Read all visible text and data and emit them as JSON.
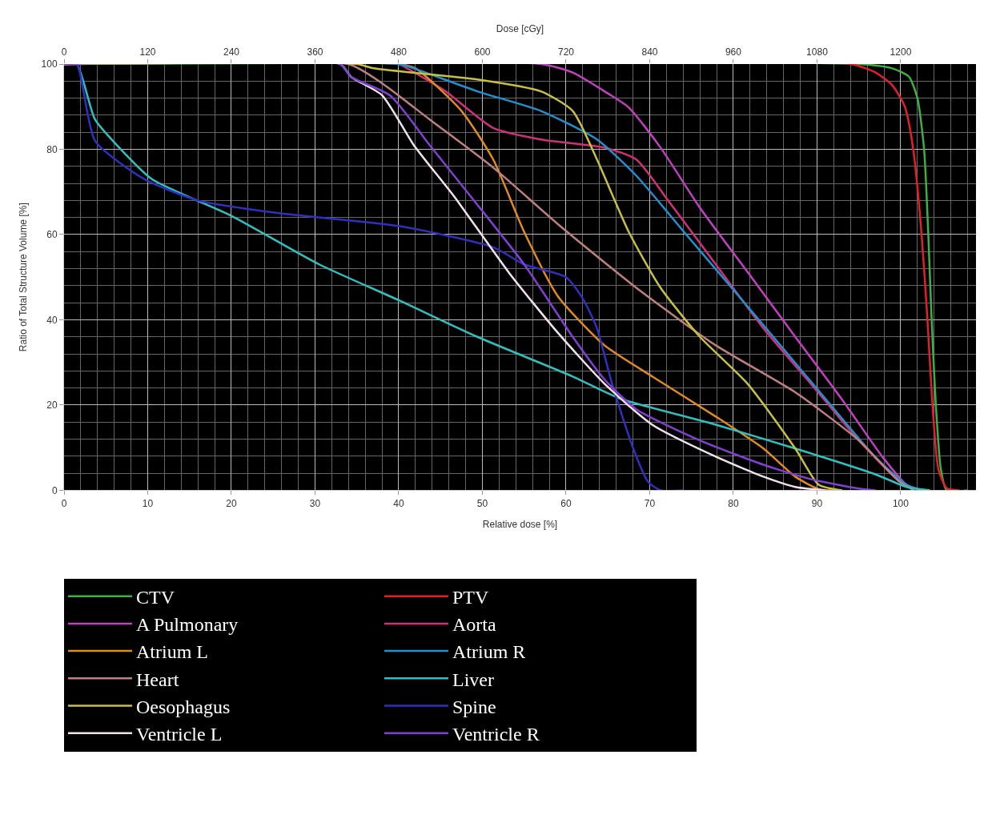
{
  "chart_data": {
    "type": "line",
    "xlabel": "Relative dose [%]",
    "x2label": "Dose [cGy]",
    "ylabel": "Ratio of Total Structure Volume [%]",
    "xlim": [
      0,
      109
    ],
    "xticks": [
      0,
      10,
      20,
      30,
      40,
      50,
      60,
      70,
      80,
      90,
      100
    ],
    "x2lim": [
      0,
      1308
    ],
    "x2ticks": [
      0,
      120,
      240,
      360,
      480,
      600,
      720,
      840,
      960,
      1080,
      1200
    ],
    "ylim": [
      0,
      100
    ],
    "yticks": [
      0,
      20,
      40,
      60,
      80,
      100
    ],
    "grid": true,
    "legend": "bottom",
    "marker": "none",
    "line_style": "solid",
    "series": [
      {
        "name": "CTV",
        "color": "#3cb043",
        "x": [
          0,
          95,
          99,
          101,
          102,
          102.8,
          103.3,
          103.7,
          104.2,
          104.8,
          105.5,
          108
        ],
        "values": [
          100,
          100,
          99,
          97,
          92,
          80,
          60,
          40,
          20,
          5,
          0,
          0
        ]
      },
      {
        "name": "PTV",
        "color": "#e0202a",
        "x": [
          0,
          94,
          97,
          99,
          100.5,
          101.5,
          102.5,
          103.2,
          103.8,
          104.5,
          105.5,
          107
        ],
        "values": [
          100,
          100,
          98,
          95,
          90,
          80,
          60,
          40,
          20,
          5,
          0.5,
          0
        ]
      },
      {
        "name": "A Pulmonary",
        "color": "#c040c0",
        "x": [
          0,
          57,
          60.8,
          64.6,
          67.5,
          71.3,
          76,
          81.7,
          87.4,
          93.1,
          97.8,
          100.7,
          102.6
        ],
        "values": [
          100,
          100,
          98,
          93.6,
          89.8,
          80.4,
          66.3,
          51.2,
          36,
          21,
          7.9,
          1.3,
          0
        ]
      },
      {
        "name": "Aorta",
        "color": "#d0307a",
        "x": [
          0,
          40,
          41,
          45.6,
          51.3,
          57,
          64.6,
          68.4,
          72.2,
          77.9,
          83.6,
          89.3,
          95,
          99.7,
          101.6
        ],
        "values": [
          100,
          100,
          99,
          93.6,
          85,
          82.3,
          80.4,
          77.6,
          68,
          53,
          38,
          24.9,
          11.7,
          2.3,
          0
        ]
      },
      {
        "name": "Atrium L",
        "color": "#e08a20",
        "x": [
          0,
          40,
          42,
          47.5,
          51.3,
          55,
          59,
          64.6,
          70.3,
          77.9,
          83.6,
          87.4,
          90.2,
          93
        ],
        "values": [
          100,
          100,
          99,
          89,
          77.6,
          60.6,
          45.6,
          34,
          26.7,
          17.3,
          9.8,
          3.2,
          0.3,
          0
        ]
      },
      {
        "name": "Atrium R",
        "color": "#2090d0",
        "x": [
          0,
          40,
          41.8,
          49.4,
          57,
          63.7,
          68.4,
          74.1,
          79.8,
          85.5,
          91.2,
          96.9,
          100.7,
          102.6
        ],
        "values": [
          100,
          100,
          99,
          93.6,
          89,
          82.3,
          73.8,
          60.6,
          47.5,
          34.3,
          21,
          7.9,
          1.3,
          0
        ]
      },
      {
        "name": "Heart",
        "color": "#c08080",
        "x": [
          0,
          34,
          38,
          43.7,
          51.3,
          59,
          68.4,
          77.9,
          87.4,
          95,
          99.7,
          101.6
        ],
        "values": [
          100,
          100,
          95.5,
          87,
          75.7,
          62.5,
          47.5,
          34,
          23,
          11.7,
          2.3,
          0
        ]
      },
      {
        "name": "Liver",
        "color": "#30c0c0",
        "x": [
          0,
          1.5,
          3.7,
          6.3,
          10.5,
          20,
          30.5,
          40,
          49.4,
          60.8,
          66.5,
          77.9,
          87.4,
          96.9,
          100.7,
          103.5
        ],
        "values": [
          100,
          100,
          87,
          81,
          73,
          64.4,
          53,
          44.6,
          36,
          26.7,
          21.5,
          15.4,
          9.8,
          3.8,
          0.8,
          0
        ]
      },
      {
        "name": "Oesophagus",
        "color": "#c8c040",
        "x": [
          0,
          35,
          37,
          49.4,
          57,
          60.8,
          63.7,
          67.5,
          71.3,
          76,
          81.7,
          87.4,
          90.2,
          93
        ],
        "values": [
          100,
          100,
          99,
          96.4,
          93.6,
          89,
          77.6,
          60.6,
          47.5,
          36,
          25,
          9.8,
          1.3,
          0
        ]
      },
      {
        "name": "Spine",
        "color": "#3030c0",
        "x": [
          0,
          1.5,
          3.7,
          9.6,
          16,
          25.7,
          40,
          51.3,
          55,
          60,
          62,
          63.7,
          65.5,
          68,
          69.8,
          71.3,
          74
        ],
        "values": [
          100,
          100,
          82,
          73,
          68,
          65,
          62,
          57,
          53,
          50,
          45,
          38,
          25,
          10,
          2,
          0,
          0
        ]
      },
      {
        "name": "Ventricle L",
        "color": "#f0e0f0",
        "x": [
          0,
          33,
          34.3,
          38,
          41.8,
          46.6,
          53.2,
          59,
          64.6,
          70.3,
          77.9,
          83.6,
          87.4,
          91
        ],
        "values": [
          100,
          100,
          97,
          92.7,
          81,
          69,
          51,
          37,
          25,
          15.4,
          7.9,
          3.2,
          0.8,
          0
        ]
      },
      {
        "name": "Ventricle R",
        "color": "#8040d0",
        "x": [
          0,
          33,
          34.3,
          39,
          43.7,
          49.4,
          55,
          60.8,
          64.6,
          68.4,
          76,
          83.6,
          89.3,
          95,
          97
        ],
        "values": [
          100,
          100,
          97,
          92.6,
          81,
          67,
          53,
          36,
          26,
          19,
          11.7,
          6,
          2.6,
          0.4,
          0
        ]
      }
    ]
  }
}
